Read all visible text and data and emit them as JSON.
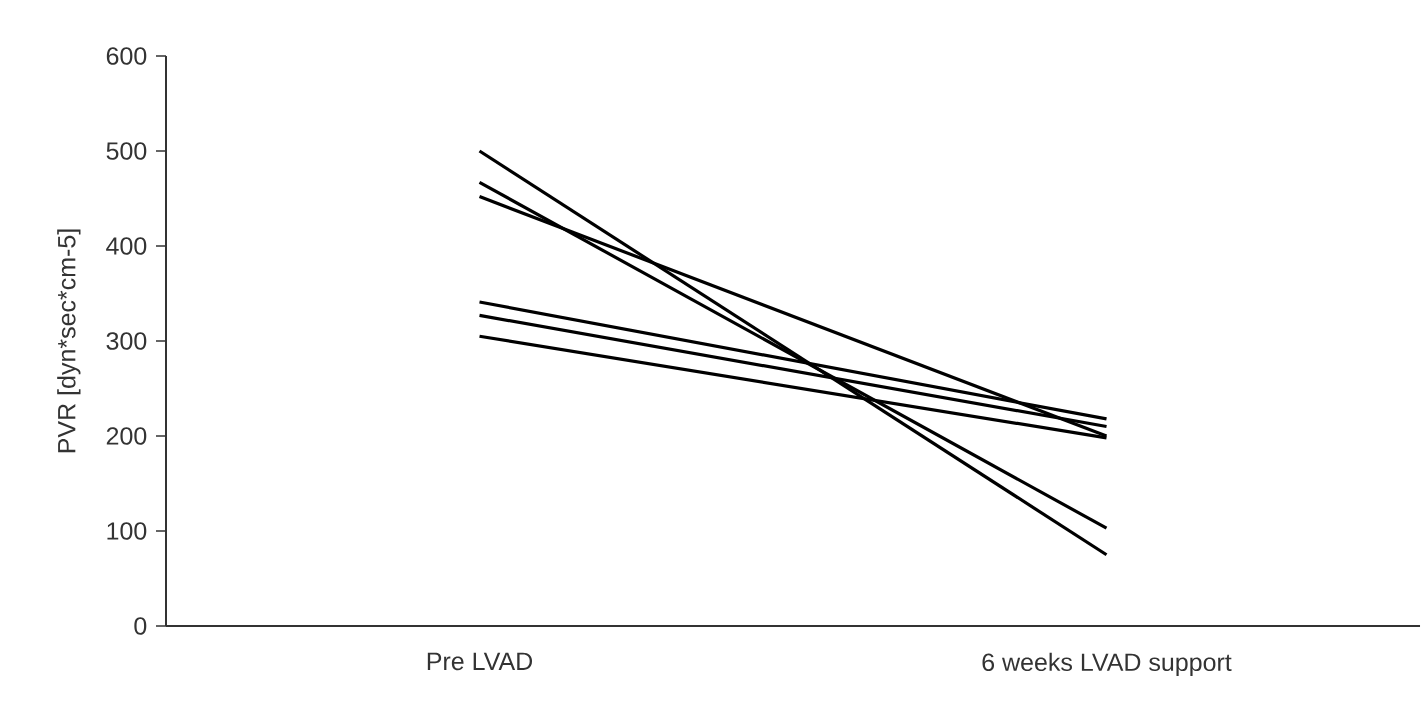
{
  "chart_data": {
    "type": "line",
    "ylabel": "PVR [dyn*sec*cm-5]",
    "categories": [
      "Pre LVAD",
      "6 weeks LVAD support"
    ],
    "ylim": [
      0,
      600
    ],
    "yticks": [
      0,
      100,
      200,
      300,
      400,
      500,
      600
    ],
    "grid": false,
    "marker": "none",
    "line_style": "solid",
    "series": [
      {
        "color": "#000000",
        "values": [
          500,
          75
        ]
      },
      {
        "color": "#000000",
        "values": [
          467,
          103
        ]
      },
      {
        "color": "#000000",
        "values": [
          452,
          200
        ]
      },
      {
        "color": "#000000",
        "values": [
          341,
          218
        ]
      },
      {
        "color": "#000000",
        "values": [
          327,
          210
        ]
      },
      {
        "color": "#000000",
        "values": [
          305,
          198
        ]
      }
    ]
  }
}
